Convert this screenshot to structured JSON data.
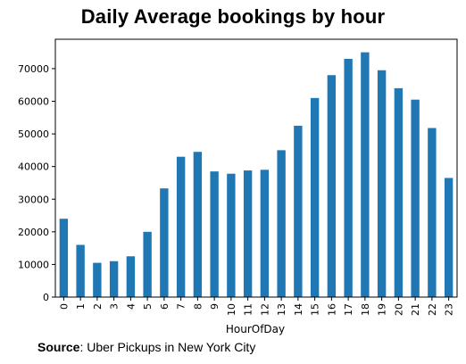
{
  "chart_data": {
    "type": "bar",
    "title": "Daily Average bookings by hour",
    "xlabel": "HourOfDay",
    "ylabel": "",
    "categories": [
      "0",
      "1",
      "2",
      "3",
      "4",
      "5",
      "6",
      "7",
      "8",
      "9",
      "10",
      "11",
      "12",
      "13",
      "14",
      "15",
      "16",
      "17",
      "18",
      "19",
      "20",
      "21",
      "22",
      "23"
    ],
    "values": [
      24000,
      16000,
      10500,
      11000,
      12500,
      20000,
      33300,
      43000,
      44500,
      38500,
      37800,
      38800,
      39000,
      45000,
      52500,
      61000,
      68000,
      73000,
      75000,
      69500,
      64000,
      60500,
      51800,
      36500
    ],
    "yticks": [
      0,
      10000,
      20000,
      30000,
      40000,
      50000,
      60000,
      70000
    ],
    "ylim": [
      0,
      79000
    ],
    "bar_color": "#1f77b4",
    "grid": false,
    "legend": "none"
  },
  "source": {
    "label": "Source",
    "text": ": Uber Pickups in New York City"
  }
}
